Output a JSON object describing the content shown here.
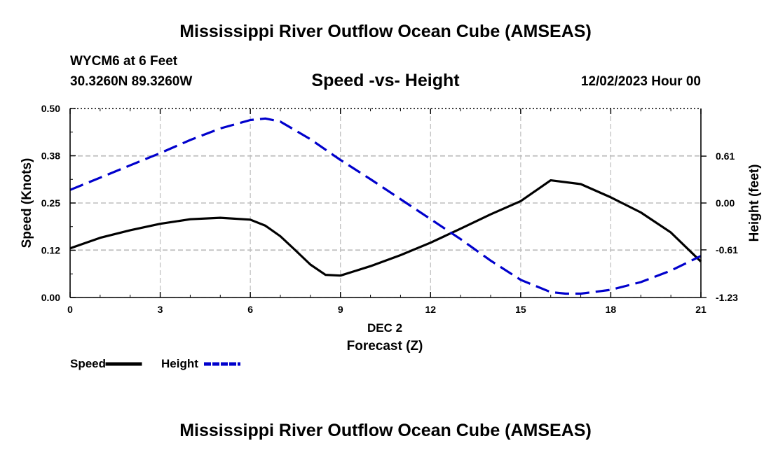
{
  "page": {
    "title_top": "Mississippi River Outflow Ocean Cube (AMSEAS)",
    "title_bottom": "Mississippi River Outflow Ocean Cube (AMSEAS)",
    "station": "WYCM6 at 6 Feet",
    "coords": "30.3260N  89.3260W",
    "datetime": "12/02/2023 Hour 00"
  },
  "chart_data": {
    "type": "line",
    "title": "Speed -vs- Height",
    "xlabel_date": "DEC 2",
    "xlabel": "Forecast (Z)",
    "ylabel": "Speed (Knots)",
    "y2label": "Height (feet)",
    "xlim": [
      0,
      21
    ],
    "ylim": [
      0,
      0.5
    ],
    "y2lim": [
      -1.23,
      1.23
    ],
    "x_ticks": [
      "0",
      "3",
      "6",
      "9",
      "12",
      "15",
      "18",
      "21"
    ],
    "y_ticks": [
      "0.00",
      "0.12",
      "0.25",
      "0.38",
      "0.50"
    ],
    "y_tick_values": [
      0.0,
      0.125,
      0.25,
      0.375,
      0.5
    ],
    "y2_ticks": [
      "-1.23",
      "-0.61",
      "0.00",
      "0.61"
    ],
    "y2_tick_values": [
      -1.23,
      -0.61,
      0.0,
      0.61
    ],
    "grid": true,
    "legend_position": "bottom-left",
    "series": [
      {
        "name": "Speed",
        "axis": "left",
        "color": "#000000",
        "dash": "solid",
        "x": [
          0,
          1,
          2,
          3,
          4,
          5,
          6,
          6.5,
          7,
          7.5,
          8,
          8.5,
          9,
          10,
          11,
          12,
          13,
          14,
          15,
          16,
          17,
          18,
          19,
          20,
          21
        ],
        "values": [
          0.13,
          0.158,
          0.178,
          0.195,
          0.207,
          0.211,
          0.206,
          0.19,
          0.162,
          0.125,
          0.087,
          0.06,
          0.058,
          0.083,
          0.112,
          0.145,
          0.182,
          0.22,
          0.255,
          0.31,
          0.3,
          0.265,
          0.225,
          0.172,
          0.095
        ]
      },
      {
        "name": "Height",
        "axis": "right",
        "color": "#0000cc",
        "dash": "dashed",
        "x": [
          0,
          1,
          2,
          3,
          4,
          5,
          6,
          6.5,
          7,
          8,
          9,
          10,
          11,
          12,
          13,
          14,
          15,
          16,
          16.5,
          17,
          18,
          19,
          20,
          21
        ],
        "values": [
          0.17,
          0.33,
          0.49,
          0.65,
          0.82,
          0.97,
          1.08,
          1.1,
          1.06,
          0.83,
          0.56,
          0.31,
          0.05,
          -0.21,
          -0.47,
          -0.75,
          -1.0,
          -1.16,
          -1.18,
          -1.18,
          -1.13,
          -1.03,
          -0.88,
          -0.69
        ]
      }
    ]
  }
}
